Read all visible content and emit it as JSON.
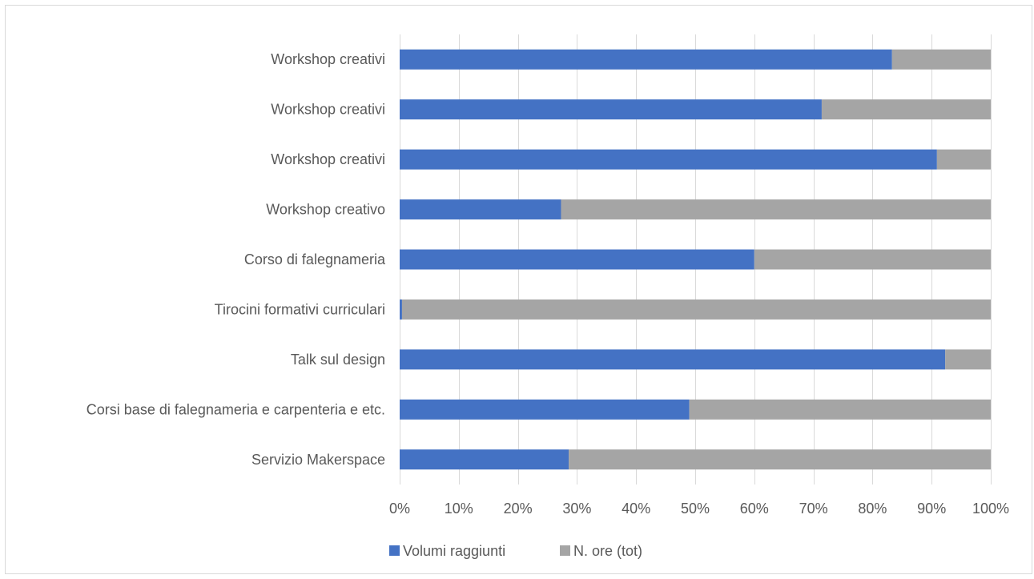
{
  "chart_data": {
    "type": "bar",
    "orientation": "horizontal",
    "stacking": "percent",
    "categories": [
      "Workshop creativi",
      "Workshop creativi",
      "Workshop creativi",
      "Workshop creativo",
      "Corso di falegnameria",
      "Tirocini formativi curriculari",
      "Talk sul design",
      "Corsi base di falegnameria e carpenteria e etc.",
      "Servizio Makerspace"
    ],
    "series": [
      {
        "name": "Volumi raggiunti",
        "color": "#4472c4",
        "values": [
          83.3,
          71.4,
          90.9,
          27.3,
          60.0,
          0.4,
          92.3,
          49.0,
          28.6
        ]
      },
      {
        "name": "N. ore (tot)",
        "color": "#a5a5a5",
        "values": [
          16.7,
          28.6,
          9.1,
          72.7,
          40.0,
          99.6,
          7.7,
          51.0,
          71.4
        ]
      }
    ],
    "x_ticks": [
      "0%",
      "10%",
      "20%",
      "30%",
      "40%",
      "50%",
      "60%",
      "70%",
      "80%",
      "90%",
      "100%"
    ],
    "xlim": [
      0,
      100
    ],
    "grid": true,
    "legend_position": "bottom"
  }
}
